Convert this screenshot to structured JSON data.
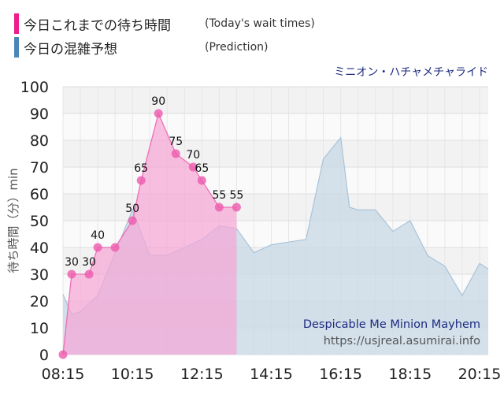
{
  "legend": {
    "today_title": "今日これまでの待ち時間",
    "today_sub": "(Today's wait times)",
    "prediction_title": "今日の混雑予想",
    "prediction_sub": "(Prediction)"
  },
  "ride_name_jp": "ミニオン・ハチャメチャライド",
  "colors": {
    "today_swatch": "#ee1c8c",
    "prediction_swatch": "#4a86b8",
    "today_fill": "#f5a6d6",
    "today_line": "#ee6fb8",
    "today_point": "#ee5aac",
    "prediction_fill": "#c7d8e6",
    "prediction_line": "#a9c3d8",
    "watermark_title": "#1e2a80",
    "watermark_url": "#555555"
  },
  "chart_data": {
    "type": "area",
    "ylabel": "待ち時間（分）min",
    "ylim": [
      0,
      100
    ],
    "yticks": [
      0,
      10,
      20,
      30,
      40,
      50,
      60,
      70,
      80,
      90,
      100
    ],
    "xlim_minutes": [
      495,
      1230
    ],
    "xticks": [
      "08:15",
      "10:15",
      "12:15",
      "14:15",
      "16:15",
      "18:15",
      "20:15"
    ],
    "grid": true,
    "series": [
      {
        "name": "今日これまでの待ち時間",
        "x": [
          "08:15",
          "08:30",
          "09:00",
          "09:15",
          "09:45",
          "10:15",
          "10:30",
          "11:00",
          "11:30",
          "12:00",
          "12:15",
          "12:45",
          "13:15",
          "13:30",
          "14:00",
          "14:15"
        ],
        "values": [
          0,
          30,
          30,
          40,
          40,
          50,
          65,
          90,
          75,
          70,
          65,
          55,
          55,
          null,
          null,
          null
        ],
        "labels": [
          "",
          "30",
          "30",
          "40",
          "",
          "50",
          "65",
          "90",
          "75",
          "70",
          "65",
          "55",
          "55"
        ]
      },
      {
        "name": "今日の混雑予想",
        "x": [
          "08:00",
          "08:30",
          "08:45",
          "09:15",
          "09:45",
          "10:15",
          "10:45",
          "11:15",
          "11:45",
          "12:15",
          "12:45",
          "13:15",
          "13:45",
          "14:15",
          "14:45",
          "15:15",
          "15:45",
          "16:15",
          "16:30",
          "16:45",
          "17:15",
          "17:45",
          "18:15",
          "18:45",
          "19:15",
          "19:45",
          "20:15",
          "20:45"
        ],
        "values": [
          30,
          15,
          16,
          22,
          38,
          54,
          37,
          37,
          40,
          43,
          48,
          47,
          38,
          41,
          42,
          43,
          73,
          81,
          55,
          54,
          54,
          46,
          50,
          37,
          33,
          22,
          34,
          30
        ]
      }
    ]
  },
  "watermark": {
    "title": "Despicable Me Minion Mayhem",
    "url": "https://usjreal.asumirai.info"
  }
}
